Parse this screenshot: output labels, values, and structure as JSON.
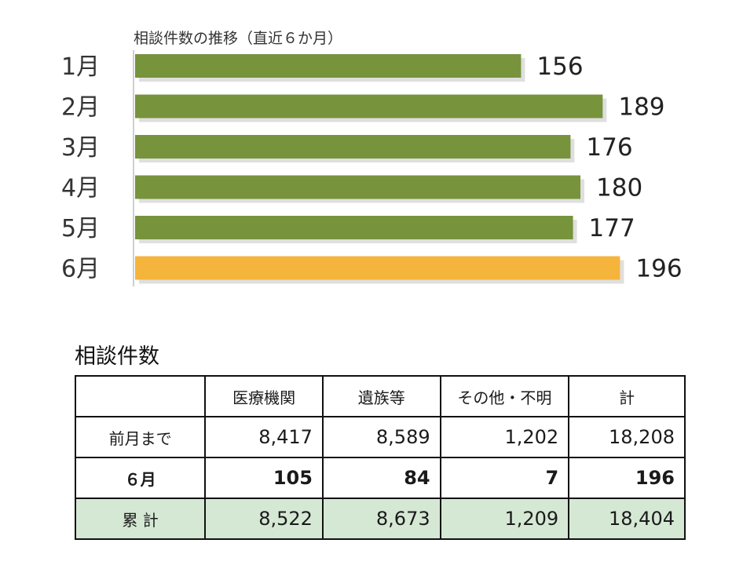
{
  "chart_data": {
    "type": "bar",
    "orientation": "horizontal",
    "title": "相談件数の推移（直近６か月）",
    "categories": [
      "1月",
      "2月",
      "3月",
      "4月",
      "5月",
      "6月"
    ],
    "values": [
      156,
      189,
      176,
      180,
      177,
      196
    ],
    "highlight_index": 5,
    "colors": {
      "bar": "#77933c",
      "highlight": "#f5b43c",
      "shadow": "#c9c9c9"
    },
    "xlim": [
      0,
      196
    ],
    "grid": false
  },
  "table": {
    "title": "相談件数",
    "headers": [
      "",
      "医療機関",
      "遺族等",
      "その他・不明",
      "計"
    ],
    "rows": [
      {
        "label": "前月まで",
        "values": [
          "8,417",
          "8,589",
          "1,202",
          "18,208"
        ]
      },
      {
        "label": "６月",
        "values": [
          "105",
          "84",
          "7",
          "196"
        ]
      },
      {
        "label": "累 計",
        "values": [
          "8,522",
          "8,673",
          "1,209",
          "18,404"
        ]
      }
    ]
  }
}
